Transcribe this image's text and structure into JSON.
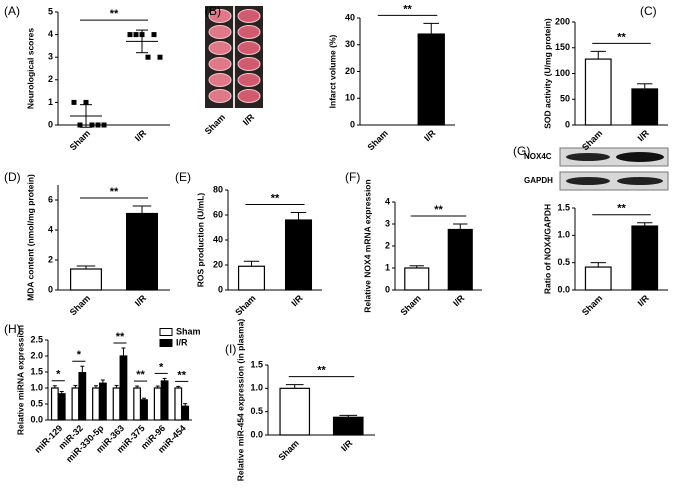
{
  "chart_data": [
    {
      "panel": "(A)",
      "type": "dot",
      "ylabel": "Neurological scores",
      "categories": [
        "Sham",
        "I/R"
      ],
      "values": [
        0.4,
        3.7
      ],
      "errors": [
        0.5,
        0.5
      ],
      "points": [
        [
          1,
          1,
          0,
          0,
          0,
          0
        ],
        [
          4,
          4,
          4,
          4,
          3,
          3
        ]
      ],
      "colors": [
        "#000000",
        "#000000"
      ],
      "ylim": [
        0,
        5
      ],
      "yticks": [
        0,
        1,
        2,
        3,
        4,
        5
      ],
      "significance": "**"
    },
    {
      "panel": "(B)",
      "type": "bar",
      "image_categories": [
        "Sham",
        "I/R"
      ],
      "ylabel": "Infarct volume (%)",
      "categories": [
        "Sham",
        "I/R"
      ],
      "values": [
        0,
        34
      ],
      "errors": [
        0,
        4
      ],
      "colors": [
        "#ffffff",
        "#000000"
      ],
      "ylim": [
        0,
        40
      ],
      "yticks": [
        0,
        10,
        20,
        30,
        40
      ],
      "significance": "**"
    },
    {
      "panel": "(C)",
      "type": "bar",
      "ylabel": "SOD activity (U/mg protein)",
      "categories": [
        "Sham",
        "I/R"
      ],
      "values": [
        128,
        70
      ],
      "errors": [
        15,
        10
      ],
      "colors": [
        "#ffffff",
        "#000000"
      ],
      "ylim": [
        0,
        200
      ],
      "yticks": [
        0,
        50,
        100,
        150,
        200
      ],
      "significance": "**"
    },
    {
      "panel": "(D)",
      "type": "bar",
      "ylabel": "MDA content (nmol/mg protein)",
      "categories": [
        "Sham",
        "I/R"
      ],
      "values": [
        1.4,
        5.1
      ],
      "errors": [
        0.2,
        0.5
      ],
      "colors": [
        "#ffffff",
        "#000000"
      ],
      "ylim": [
        0,
        7
      ],
      "yticks": [
        0,
        2,
        4,
        6
      ],
      "significance": "**"
    },
    {
      "panel": "(E)",
      "type": "bar",
      "ylabel": "ROS production (U/mL)",
      "categories": [
        "Sham",
        "I/R"
      ],
      "values": [
        19,
        56
      ],
      "errors": [
        4,
        6
      ],
      "colors": [
        "#ffffff",
        "#000000"
      ],
      "ylim": [
        0,
        80
      ],
      "yticks": [
        0,
        20,
        40,
        60,
        80
      ],
      "significance": "**"
    },
    {
      "panel": "(F)",
      "type": "bar",
      "ylabel": "Relative NOX4 mRNA expression",
      "categories": [
        "Sham",
        "I/R"
      ],
      "values": [
        1.0,
        2.75
      ],
      "errors": [
        0.1,
        0.25
      ],
      "colors": [
        "#ffffff",
        "#000000"
      ],
      "ylim": [
        0,
        4
      ],
      "yticks": [
        0,
        1,
        2,
        3,
        4
      ],
      "significance": "**"
    },
    {
      "panel": "(G)",
      "type": "bar",
      "blot_labels": [
        "NOX4C",
        "GAPDH"
      ],
      "ylabel": "Ratio of NOX4/GAPDH",
      "categories": [
        "Sham",
        "I/R"
      ],
      "values": [
        0.42,
        1.17
      ],
      "errors": [
        0.08,
        0.06
      ],
      "colors": [
        "#ffffff",
        "#000000"
      ],
      "ylim": [
        0,
        1.5
      ],
      "yticks": [
        {
          "value": 0,
          "label": "0.0"
        },
        0.5,
        {
          "value": 1,
          "label": "1.0"
        },
        1.5
      ],
      "significance": "**"
    },
    {
      "panel": "(H)",
      "type": "grouped_bar",
      "ylabel": "Relative miRNA expression",
      "categories": [
        "miR-129",
        "miR-32",
        "miR-330-5p",
        "miR-363",
        "miR-375",
        "miR-96",
        "miR-454"
      ],
      "series": [
        {
          "name": "Sham",
          "color": "#ffffff",
          "values": [
            1.0,
            1.0,
            1.0,
            1.0,
            1.0,
            1.0,
            1.0
          ],
          "errors": [
            0.07,
            0.08,
            0.07,
            0.08,
            0.06,
            0.06,
            0.05
          ]
        },
        {
          "name": "I/R",
          "color": "#000000",
          "values": [
            0.82,
            1.48,
            1.15,
            2.0,
            0.63,
            1.22,
            0.43
          ],
          "errors": [
            0.07,
            0.2,
            0.1,
            0.25,
            0.05,
            0.08,
            0.08
          ]
        }
      ],
      "significance": [
        "*",
        "*",
        null,
        "**",
        "**",
        "*",
        "**"
      ],
      "ylim": [
        0,
        2.5
      ],
      "yticks": [
        {
          "value": 0,
          "label": "0.0"
        },
        0.5,
        {
          "value": 1,
          "label": "1.0"
        },
        1.5,
        {
          "value": 2,
          "label": "2.0"
        },
        2.5
      ],
      "legend": "top-right"
    },
    {
      "panel": "(I)",
      "type": "bar",
      "ylabel": "Relative miR-454 expression (in plasma)",
      "categories": [
        "Sham",
        "I/R"
      ],
      "values": [
        1.0,
        0.38
      ],
      "errors": [
        0.08,
        0.04
      ],
      "colors": [
        "#ffffff",
        "#000000"
      ],
      "ylim": [
        0,
        1.5
      ],
      "yticks": [
        {
          "value": 0,
          "label": "0.0"
        },
        0.5,
        {
          "value": 1,
          "label": "1.0"
        },
        1.5
      ],
      "significance": "**"
    }
  ]
}
